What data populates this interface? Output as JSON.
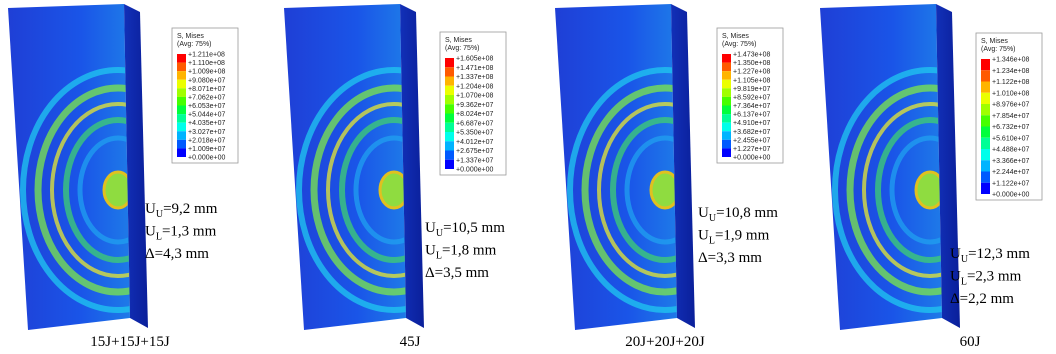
{
  "panels": [
    {
      "legend": {
        "title": "S, Mises",
        "subtitle": "(Avg: 75%)",
        "values": [
          "+1.211e+08",
          "+1.110e+08",
          "+1.009e+08",
          "+9.080e+07",
          "+8.071e+07",
          "+7.062e+07",
          "+6.053e+07",
          "+5.044e+07",
          "+4.035e+07",
          "+3.027e+07",
          "+2.018e+07",
          "+1.009e+07",
          "+0.000e+00"
        ]
      },
      "measurements": [
        {
          "symbol": "U",
          "subscript": "U",
          "text": "=9,2 mm"
        },
        {
          "symbol": "U",
          "subscript": "L",
          "text": "=1,3 mm"
        },
        {
          "text": "Δ=4,3 mm"
        }
      ],
      "caption": "15J+15J+15J"
    },
    {
      "legend": {
        "title": "S, Mises",
        "subtitle": "(Avg: 75%)",
        "values": [
          "+1.605e+08",
          "+1.471e+08",
          "+1.337e+08",
          "+1.204e+08",
          "+1.070e+08",
          "+9.362e+07",
          "+8.024e+07",
          "+6.687e+07",
          "+5.350e+07",
          "+4.012e+07",
          "+2.675e+07",
          "+1.337e+07",
          "+0.000e+00"
        ]
      },
      "measurements": [
        {
          "symbol": "U",
          "subscript": "U",
          "text": "=10,5 mm"
        },
        {
          "symbol": "U",
          "subscript": "L",
          "text": "=1,8 mm"
        },
        {
          "text": "Δ=3,5 mm"
        }
      ],
      "caption": "45J"
    },
    {
      "legend": {
        "title": "S, Mises",
        "subtitle": "(Avg: 75%)",
        "values": [
          "+1.473e+08",
          "+1.350e+08",
          "+1.227e+08",
          "+1.105e+08",
          "+9.819e+07",
          "+8.592e+07",
          "+7.364e+07",
          "+6.137e+07",
          "+4.910e+07",
          "+3.682e+07",
          "+2.455e+07",
          "+1.227e+07",
          "+0.000e+00"
        ]
      },
      "measurements": [
        {
          "symbol": "U",
          "subscript": "U",
          "text": "=10,8 mm"
        },
        {
          "symbol": "U",
          "subscript": "L",
          "text": "=1,9 mm"
        },
        {
          "text": "Δ=3,3 mm"
        }
      ],
      "caption": "20J+20J+20J"
    },
    {
      "legend": {
        "title": "S, Mises",
        "subtitle": "(Avg: 75%)",
        "values": [
          "+1.346e+08",
          "+1.234e+08",
          "+1.122e+08",
          "+1.010e+08",
          "+8.976e+07",
          "+7.854e+07",
          "+6.732e+07",
          "+5.610e+07",
          "+4.488e+07",
          "+3.366e+07",
          "+2.244e+07",
          "+1.122e+07",
          "+0.000e+00"
        ]
      },
      "measurements": [
        {
          "symbol": "U",
          "subscript": "U",
          "text": "=12,3 mm"
        },
        {
          "symbol": "U",
          "subscript": "L",
          "text": "=2,3 mm"
        },
        {
          "text": "Δ=2,2 mm"
        }
      ],
      "caption": "60J"
    }
  ]
}
